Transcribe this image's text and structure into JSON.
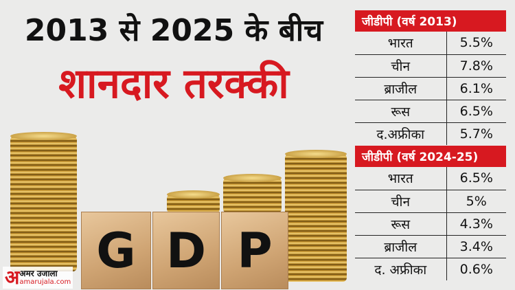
{
  "title": {
    "line1": "2013 से 2025 के बीच",
    "line2": "शानदार तरक्की"
  },
  "image_blocks": [
    "G",
    "D",
    "P"
  ],
  "table_2013": {
    "header": "जीडीपी (वर्ष 2013)",
    "rows": [
      {
        "country": "भारत",
        "value": "5.5%"
      },
      {
        "country": "चीन",
        "value": "7.8%"
      },
      {
        "country": "ब्राजील",
        "value": "6.1%"
      },
      {
        "country": "रूस",
        "value": "6.5%"
      },
      {
        "country": "द.अफ्रीका",
        "value": "5.7%"
      }
    ]
  },
  "table_2024": {
    "header": "जीडीपी (वर्ष 2024-25)",
    "rows": [
      {
        "country": "भारत",
        "value": "6.5%"
      },
      {
        "country": "चीन",
        "value": "5%"
      },
      {
        "country": "रूस",
        "value": "4.3%"
      },
      {
        "country": "ब्राजील",
        "value": "3.4%"
      },
      {
        "country": "द. अफ्रीका",
        "value": "0.6%"
      }
    ]
  },
  "logo": {
    "mark": "अ",
    "name": "अमर उजाला",
    "url": "amarujala.com"
  },
  "colors": {
    "accent": "#d71920",
    "text": "#111111",
    "background": "#ebebea"
  }
}
